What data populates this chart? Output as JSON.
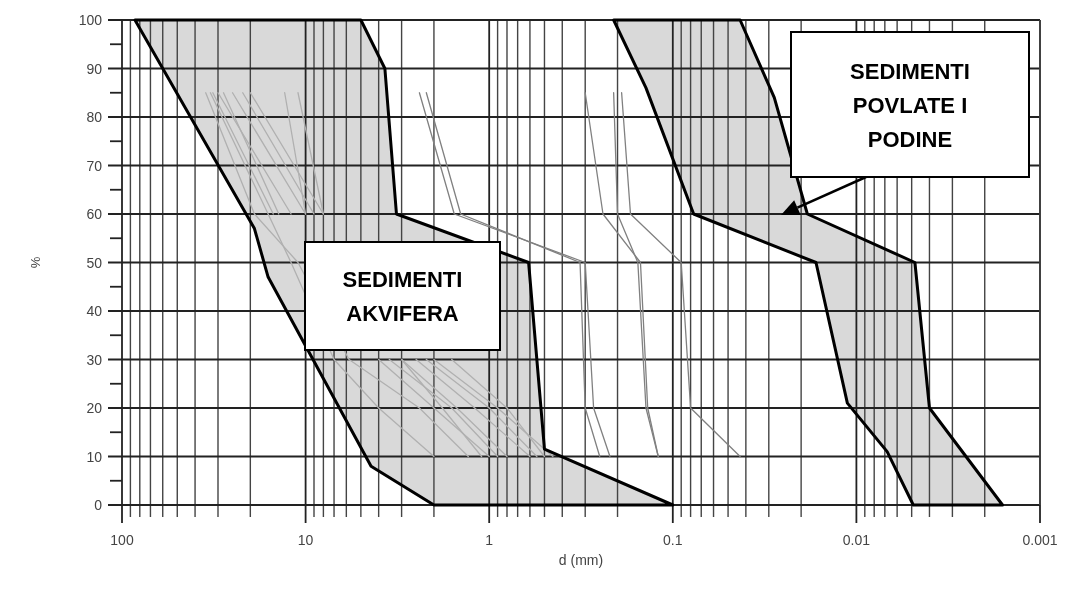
{
  "chart_data": {
    "type": "line",
    "xlabel": "d (mm)",
    "ylabel": "%",
    "log": "x",
    "grid": true,
    "xlim": [
      100,
      0.001
    ],
    "ylim": [
      0,
      100
    ],
    "xticks": [
      100,
      {
        "value": 90,
        "label": null
      },
      {
        "value": 80,
        "label": null
      },
      {
        "value": 70,
        "label": null
      },
      {
        "value": 60,
        "label": null
      },
      {
        "value": 50,
        "label": null
      },
      {
        "value": 40,
        "label": null
      },
      {
        "value": 30,
        "label": null
      },
      {
        "value": 20,
        "label": null
      },
      10,
      {
        "value": 9,
        "label": null
      },
      {
        "value": 8,
        "label": null
      },
      {
        "value": 7,
        "label": null
      },
      {
        "value": 6,
        "label": null
      },
      {
        "value": 5,
        "label": null
      },
      {
        "value": 4,
        "label": null
      },
      {
        "value": 3,
        "label": null
      },
      {
        "value": 2,
        "label": null
      },
      1,
      {
        "value": 0.9,
        "label": null
      },
      {
        "value": 0.8,
        "label": null
      },
      {
        "value": 0.7,
        "label": null
      },
      {
        "value": 0.6,
        "label": null
      },
      {
        "value": 0.5,
        "label": null
      },
      {
        "value": 0.4,
        "label": null
      },
      {
        "value": 0.3,
        "label": null
      },
      {
        "value": 0.2,
        "label": null
      },
      0.1,
      {
        "value": 0.09,
        "label": null
      },
      {
        "value": 0.08,
        "label": null
      },
      {
        "value": 0.07,
        "label": null
      },
      {
        "value": 0.06,
        "label": null
      },
      {
        "value": 0.05,
        "label": null
      },
      {
        "value": 0.04,
        "label": null
      },
      {
        "value": 0.03,
        "label": null
      },
      {
        "value": 0.02,
        "label": null
      },
      0.01,
      {
        "value": 0.009,
        "label": null
      },
      {
        "value": 0.008,
        "label": null
      },
      {
        "value": 0.007,
        "label": null
      },
      {
        "value": 0.006,
        "label": null
      },
      {
        "value": 0.005,
        "label": null
      },
      {
        "value": 0.004,
        "label": null
      },
      {
        "value": 0.003,
        "label": null
      },
      {
        "value": 0.002,
        "label": null
      },
      0.001
    ],
    "yticks": [
      0,
      {
        "value": 5,
        "label": null
      },
      10,
      {
        "value": 15,
        "label": null
      },
      20,
      {
        "value": 25,
        "label": null
      },
      30,
      {
        "value": 35,
        "label": null
      },
      40,
      {
        "value": 45,
        "label": null
      },
      50,
      {
        "value": 55,
        "label": null
      },
      60,
      {
        "value": 65,
        "label": null
      },
      70,
      {
        "value": 75,
        "label": null
      },
      80,
      {
        "value": 85,
        "label": null
      },
      90,
      {
        "value": 95,
        "label": null
      },
      100
    ],
    "series": [
      {
        "type": "area",
        "color": "#d9d9d9",
        "x": [
          85,
          19,
          16,
          4.4,
          2,
          0.1,
          0.5,
          0.61,
          3.2,
          3.7,
          5,
          85
        ],
        "values": [
          100,
          57,
          47,
          8,
          0,
          0,
          11.5,
          50,
          60,
          90,
          100,
          100
        ]
      },
      {
        "type": "area",
        "color": "#d9d9d9",
        "x": [
          0.21,
          0.14,
          0.077,
          0.0166,
          0.0112,
          0.0068,
          0.0049,
          0.0016,
          0.004,
          0.0048,
          0.0185,
          0.028,
          0.043,
          0.21
        ],
        "values": [
          100,
          86,
          60,
          50,
          21,
          11,
          0,
          0,
          20,
          50,
          60,
          84,
          100,
          100
        ]
      },
      {
        "color": "#b0b0b0",
        "x": [
          35,
          19,
          11,
          5.8,
          2.4,
          1.3
        ],
        "values": [
          85,
          60,
          50,
          30,
          20,
          10
        ]
      },
      {
        "color": "#b0b0b0",
        "x": [
          32,
          15,
          9,
          4,
          2,
          1.0
        ],
        "values": [
          85,
          60,
          null,
          30,
          20,
          10
        ]
      },
      {
        "color": "#b0b0b0",
        "x": [
          30,
          12,
          7,
          3,
          1.5,
          0.8
        ],
        "values": [
          85,
          60,
          null,
          30,
          20,
          10
        ]
      },
      {
        "color": "#b0b0b0",
        "x": [
          28,
          14,
          6,
          2.5,
          1.2,
          0.6
        ],
        "values": [
          85,
          60,
          null,
          30,
          20,
          10
        ]
      },
      {
        "color": "#b0b0b0",
        "x": [
          25,
          10,
          5,
          2.2,
          1,
          0.55
        ],
        "values": [
          85,
          60,
          null,
          30,
          20,
          10
        ]
      },
      {
        "color": "#b0b0b0",
        "x": [
          22,
          9,
          5.5,
          3.5,
          1.6,
          0.9
        ],
        "values": [
          85,
          60,
          null,
          30,
          20,
          10
        ]
      },
      {
        "color": "#b0b0b0",
        "x": [
          20,
          8,
          4,
          2,
          0.9,
          0.45
        ],
        "values": [
          85,
          60,
          null,
          30,
          20,
          10
        ]
      },
      {
        "color": "#b0b0b0",
        "x": [
          13,
          10,
          6,
          3,
          1.8,
          1.1
        ],
        "values": [
          85,
          60,
          null,
          30,
          20,
          10
        ]
      },
      {
        "color": "#b0b0b0",
        "x": [
          11,
          8,
          3,
          1.6,
          0.8,
          0.5
        ],
        "values": [
          85,
          60,
          null,
          30,
          20,
          10
        ]
      },
      {
        "color": "#b0b0b0",
        "x": [
          33,
          16,
          12,
          7,
          4,
          2
        ],
        "values": [
          85,
          60,
          50,
          30,
          20,
          10
        ]
      },
      {
        "color": "#808080",
        "x": [
          2.4,
          1.55,
          0.3,
          0.27,
          0.22
        ],
        "values": [
          85,
          60,
          50,
          20,
          10
        ]
      },
      {
        "color": "#808080",
        "x": [
          2.2,
          1.43,
          0.32,
          0.3,
          0.25
        ],
        "values": [
          85,
          60,
          50,
          20,
          10
        ]
      },
      {
        "color": "#808080",
        "x": [
          0.3,
          0.24,
          0.15,
          0.137,
          0.12
        ],
        "values": [
          85,
          60,
          50,
          20,
          10
        ]
      },
      {
        "color": "#808080",
        "x": [
          0.21,
          0.2,
          0.155,
          0.14,
          0.12
        ],
        "values": [
          85,
          60,
          50,
          20,
          10
        ]
      },
      {
        "color": "#808080",
        "x": [
          0.19,
          0.17,
          0.09,
          0.08,
          0.043
        ],
        "values": [
          85,
          60,
          50,
          20,
          10
        ]
      }
    ],
    "annotations": [
      "SEDIMENTI AKVIFERA",
      "SEDIMENTI POVLATE I PODINE"
    ]
  }
}
